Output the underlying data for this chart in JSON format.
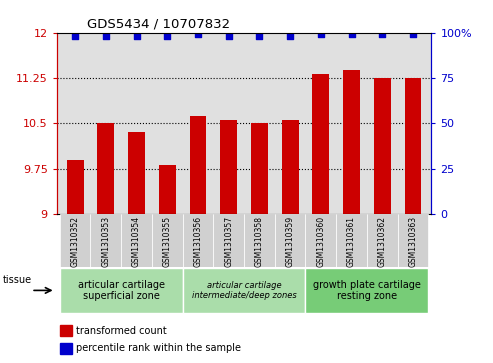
{
  "title": "GDS5434 / 10707832",
  "samples": [
    "GSM1310352",
    "GSM1310353",
    "GSM1310354",
    "GSM1310355",
    "GSM1310356",
    "GSM1310357",
    "GSM1310358",
    "GSM1310359",
    "GSM1310360",
    "GSM1310361",
    "GSM1310362",
    "GSM1310363"
  ],
  "bar_values": [
    9.9,
    10.5,
    10.35,
    9.82,
    10.62,
    10.55,
    10.5,
    10.55,
    11.32,
    11.38,
    11.25,
    11.25
  ],
  "pct_values": [
    98,
    98,
    98,
    98,
    99,
    98,
    98,
    98,
    99.5,
    99.5,
    99,
    99
  ],
  "bar_color": "#cc0000",
  "percentile_color": "#0000cc",
  "ylim": [
    9.0,
    12.0
  ],
  "yticks_left": [
    9.0,
    9.75,
    10.5,
    11.25,
    12.0
  ],
  "yticks_right": [
    0,
    25,
    50,
    75,
    100
  ],
  "ytick_labels_left": [
    "9",
    "9.75",
    "10.5",
    "11.25",
    "12"
  ],
  "ytick_labels_right": [
    "0",
    "25",
    "50",
    "75",
    "100%"
  ],
  "grid_lines": [
    9.75,
    10.5,
    11.25
  ],
  "tissue_colors": [
    "#aaddaa",
    "#aaddaa",
    "#77cc77"
  ],
  "tissue_labels": [
    "articular cartilage\nsuperficial zone",
    "articular cartilage\nintermediate/deep zones",
    "growth plate cartilage\nresting zone"
  ],
  "tissue_fontstyle": [
    "normal",
    "italic",
    "normal"
  ],
  "tissue_fontsize": [
    7,
    6,
    7
  ],
  "tissue_ranges": [
    [
      0,
      4
    ],
    [
      4,
      8
    ],
    [
      8,
      12
    ]
  ],
  "legend_bar_label": "transformed count",
  "legend_pct_label": "percentile rank within the sample",
  "tissue_label": "tissue",
  "plot_bg_color": "#e0e0e0",
  "col_bg_color": "#d0d0d0"
}
